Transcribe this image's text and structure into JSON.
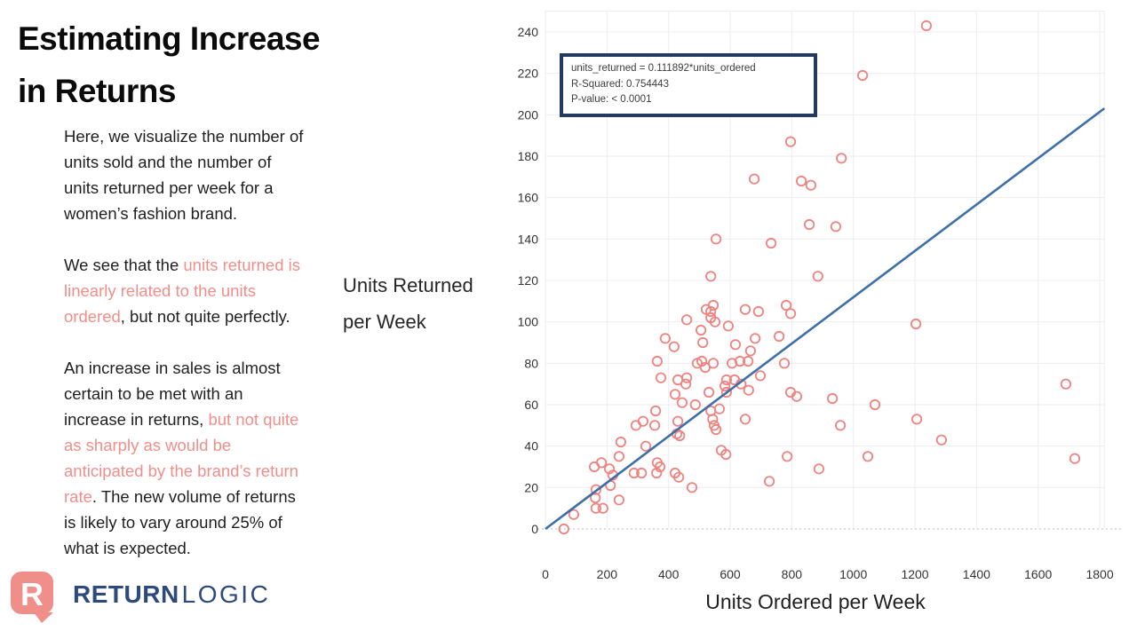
{
  "slide": {
    "title_lines": [
      "Estimating Increase",
      "in Returns"
    ],
    "paragraphs": [
      {
        "segments": [
          {
            "text": "Here, we visualize the number of\nunits sold and the number of\nunits returned per week for a\nwomen’s fashion brand.",
            "highlight": false
          }
        ]
      },
      {
        "segments": [
          {
            "text": "We see that the ",
            "highlight": false
          },
          {
            "text": "units returned is\nlinearly related to the units\nordered",
            "highlight": true
          },
          {
            "text": ", but not quite perfectly.",
            "highlight": false
          }
        ]
      },
      {
        "segments": [
          {
            "text": "An increase in sales is almost\ncertain to be met with an\nincrease in returns, ",
            "highlight": false
          },
          {
            "text": "but not quite\nas sharply as would be\nanticipated by the brand’s return\nrate",
            "highlight": true
          },
          {
            "text": ". The new volume of returns\nis likely to vary around 25% of\nwhat is expected.",
            "highlight": false
          }
        ]
      }
    ],
    "logo": {
      "icon_letter": "R",
      "brand_bold": "RETURN",
      "brand_light": "LOGIC"
    }
  },
  "colors": {
    "highlight_text": "#f08e8a",
    "point_stroke": "#ee8380",
    "trend_line": "#3e6fa8",
    "gridline": "#ededf1",
    "zero_line": "#bbbbbb",
    "annotation_border": "#24395f",
    "logo_navy": "#2d4a7a",
    "logo_salmon": "#f08e8a"
  },
  "chart_data": {
    "type": "scatter",
    "title": "",
    "xlabel": "Units Ordered per Week",
    "ylabel": "Units Returned per Week",
    "ylabel_lines": [
      "Units Returned",
      "per Week"
    ],
    "xlim": [
      0,
      1815
    ],
    "ylim": [
      0,
      250
    ],
    "xticks": [
      0,
      200,
      400,
      600,
      800,
      1000,
      1200,
      1400,
      1600,
      1800
    ],
    "yticks": [
      0,
      20,
      40,
      60,
      80,
      100,
      120,
      140,
      160,
      180,
      200,
      220,
      240
    ],
    "grid": true,
    "legend": "none",
    "point_color": "#ee8380",
    "line_color": "#3e6fa8",
    "trendline": {
      "slope": 0.111892,
      "intercept": 0,
      "equation": "units_returned = 0.111892*units_ordered"
    },
    "annotation": {
      "lines": [
        "units_returned = 0.111892*units_ordered",
        "R-Squared: 0.754443",
        "P-value: < 0.0001"
      ]
    },
    "points": [
      [
        60,
        0
      ],
      [
        92,
        7
      ],
      [
        159,
        30
      ],
      [
        162,
        15
      ],
      [
        164,
        19
      ],
      [
        164,
        10
      ],
      [
        182,
        32
      ],
      [
        187,
        10
      ],
      [
        208,
        29
      ],
      [
        211,
        21
      ],
      [
        219,
        26
      ],
      [
        239,
        14
      ],
      [
        239,
        35
      ],
      [
        245,
        42
      ],
      [
        288,
        27
      ],
      [
        294,
        50
      ],
      [
        312,
        27
      ],
      [
        317,
        52
      ],
      [
        326,
        40
      ],
      [
        355,
        50
      ],
      [
        358,
        57
      ],
      [
        361,
        27
      ],
      [
        363,
        32
      ],
      [
        363,
        81
      ],
      [
        372,
        30
      ],
      [
        375,
        73
      ],
      [
        389,
        92
      ],
      [
        418,
        88
      ],
      [
        421,
        65
      ],
      [
        421,
        27
      ],
      [
        427,
        46
      ],
      [
        430,
        52
      ],
      [
        430,
        72
      ],
      [
        433,
        25
      ],
      [
        436,
        45
      ],
      [
        444,
        61
      ],
      [
        456,
        70
      ],
      [
        459,
        73
      ],
      [
        459,
        101
      ],
      [
        476,
        20
      ],
      [
        487,
        60
      ],
      [
        493,
        80
      ],
      [
        505,
        96
      ],
      [
        508,
        81
      ],
      [
        511,
        90
      ],
      [
        519,
        78
      ],
      [
        522,
        106
      ],
      [
        531,
        66
      ],
      [
        537,
        122
      ],
      [
        537,
        105
      ],
      [
        537,
        102
      ],
      [
        537,
        57
      ],
      [
        543,
        53
      ],
      [
        545,
        108
      ],
      [
        545,
        80
      ],
      [
        548,
        50
      ],
      [
        551,
        100
      ],
      [
        554,
        48
      ],
      [
        554,
        140
      ],
      [
        565,
        58
      ],
      [
        571,
        38
      ],
      [
        583,
        69
      ],
      [
        586,
        36
      ],
      [
        588,
        72
      ],
      [
        588,
        66
      ],
      [
        594,
        98
      ],
      [
        606,
        80
      ],
      [
        614,
        72
      ],
      [
        617,
        89
      ],
      [
        632,
        81
      ],
      [
        635,
        70
      ],
      [
        649,
        106
      ],
      [
        649,
        53
      ],
      [
        658,
        81
      ],
      [
        660,
        67
      ],
      [
        666,
        86
      ],
      [
        678,
        169
      ],
      [
        681,
        92
      ],
      [
        692,
        105
      ],
      [
        698,
        74
      ],
      [
        727,
        23
      ],
      [
        733,
        138
      ],
      [
        759,
        93
      ],
      [
        776,
        80
      ],
      [
        782,
        108
      ],
      [
        785,
        35
      ],
      [
        796,
        187
      ],
      [
        796,
        104
      ],
      [
        796,
        66
      ],
      [
        816,
        64
      ],
      [
        831,
        168
      ],
      [
        857,
        147
      ],
      [
        862,
        166
      ],
      [
        885,
        122
      ],
      [
        888,
        29
      ],
      [
        932,
        63
      ],
      [
        943,
        146
      ],
      [
        958,
        50
      ],
      [
        961,
        179
      ],
      [
        1030,
        219
      ],
      [
        1047,
        35
      ],
      [
        1070,
        60
      ],
      [
        1203,
        99
      ],
      [
        1206,
        53
      ],
      [
        1237,
        243
      ],
      [
        1286,
        43
      ],
      [
        1690,
        70
      ],
      [
        1719,
        34
      ]
    ]
  }
}
